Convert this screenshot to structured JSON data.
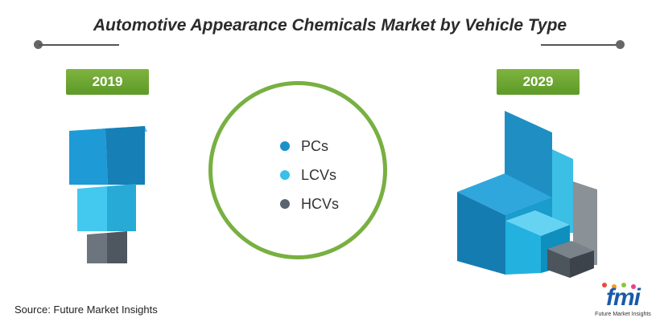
{
  "chart_data": {
    "type": "3d-cube-comparison",
    "title": "Automotive Appearance Chemicals Market by Vehicle Type",
    "categories": [
      "2019",
      "2029"
    ],
    "series": [
      {
        "name": "PCs",
        "color": "#1b91c9"
      },
      {
        "name": "LCVs",
        "color": "#39c0e8"
      },
      {
        "name": "HCVs",
        "color": "#596470"
      }
    ],
    "legend_position": "center"
  },
  "footer": {
    "source": "Source: Future Market Insights",
    "logo_text": "fmi",
    "logo_tagline": "Future Market Insights"
  }
}
